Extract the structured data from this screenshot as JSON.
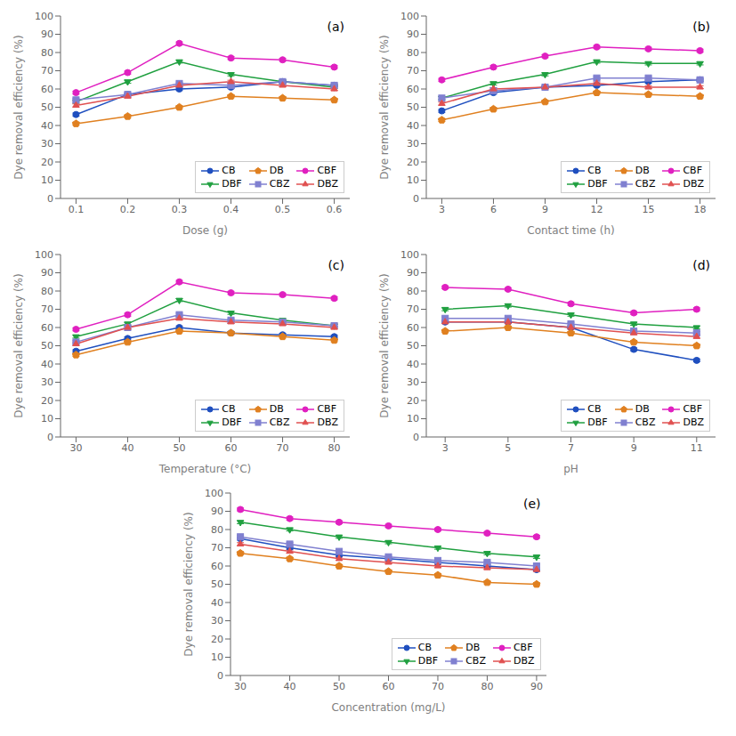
{
  "chart_data": [
    {
      "type": "line",
      "annotations": [
        "(a)"
      ],
      "xlabel": "Dose (g)",
      "ylabel": "Dye removal efficiency (%)",
      "x": [
        0.1,
        0.2,
        0.3,
        0.4,
        0.5,
        0.6
      ],
      "xlim": [
        0.07,
        0.63
      ],
      "xticks": [
        0.1,
        0.2,
        0.3,
        0.4,
        0.5,
        0.6
      ],
      "ylim": [
        0,
        100
      ],
      "yticks": [
        0,
        10,
        20,
        30,
        40,
        50,
        60,
        70,
        80,
        90,
        100
      ],
      "grid": false,
      "legend": "lower right",
      "series": [
        {
          "name": "CB",
          "color": "#1f4fbf",
          "marker": "circle",
          "values": [
            46,
            57,
            60,
            61,
            64,
            62
          ],
          "errors": [
            0.8,
            0.8,
            0.8,
            0.8,
            0.8,
            0.8
          ]
        },
        {
          "name": "DB",
          "color": "#e08020",
          "marker": "pentagon",
          "values": [
            41,
            45,
            50,
            56,
            55,
            54
          ],
          "errors": [
            0.8,
            0.8,
            0.8,
            0.8,
            0.8,
            0.8
          ]
        },
        {
          "name": "CBF",
          "color": "#e020c0",
          "marker": "circle",
          "values": [
            58,
            69,
            85,
            77,
            76,
            72
          ],
          "errors": [
            0.8,
            0.8,
            0.8,
            0.8,
            0.8,
            0.8
          ]
        },
        {
          "name": "DBF",
          "color": "#20a040",
          "marker": "triangle-down",
          "values": [
            53,
            64,
            75,
            68,
            64,
            61
          ],
          "errors": [
            0.8,
            0.8,
            0.8,
            0.8,
            0.8,
            0.8
          ]
        },
        {
          "name": "CBZ",
          "color": "#8080d0",
          "marker": "square",
          "values": [
            54,
            57,
            63,
            62,
            64,
            62
          ],
          "errors": [
            0.8,
            0.8,
            0.8,
            0.8,
            0.8,
            0.8
          ]
        },
        {
          "name": "DBZ",
          "color": "#e05050",
          "marker": "triangle-up",
          "values": [
            51,
            56,
            62,
            64,
            62,
            60
          ],
          "errors": [
            0.8,
            0.8,
            0.8,
            0.8,
            0.8,
            0.8
          ]
        }
      ]
    },
    {
      "type": "line",
      "annotations": [
        "(b)"
      ],
      "xlabel": "Contact time (h)",
      "ylabel": "Dye removal efficiency (%)",
      "x": [
        3,
        6,
        9,
        12,
        15,
        18
      ],
      "xlim": [
        2.1,
        18.9
      ],
      "xticks": [
        3,
        6,
        9,
        12,
        15,
        18
      ],
      "ylim": [
        0,
        100
      ],
      "yticks": [
        0,
        10,
        20,
        30,
        40,
        50,
        60,
        70,
        80,
        90,
        100
      ],
      "grid": false,
      "legend": "lower right",
      "series": [
        {
          "name": "CB",
          "color": "#1f4fbf",
          "marker": "circle",
          "values": [
            48,
            58,
            61,
            62,
            64,
            65
          ],
          "errors": [
            0.8,
            0.8,
            0.8,
            0.8,
            0.8,
            0.8
          ]
        },
        {
          "name": "DB",
          "color": "#e08020",
          "marker": "pentagon",
          "values": [
            43,
            49,
            53,
            58,
            57,
            56
          ],
          "errors": [
            0.8,
            0.8,
            0.8,
            0.8,
            0.8,
            0.8
          ]
        },
        {
          "name": "CBF",
          "color": "#e020c0",
          "marker": "circle",
          "values": [
            65,
            72,
            78,
            83,
            82,
            81
          ],
          "errors": [
            0.8,
            0.8,
            0.8,
            0.8,
            0.8,
            0.8
          ]
        },
        {
          "name": "DBF",
          "color": "#20a040",
          "marker": "triangle-down",
          "values": [
            55,
            63,
            68,
            75,
            74,
            74
          ],
          "errors": [
            0.8,
            0.8,
            0.8,
            0.8,
            0.8,
            0.8
          ]
        },
        {
          "name": "CBZ",
          "color": "#8080d0",
          "marker": "square",
          "values": [
            55,
            59,
            61,
            66,
            66,
            65
          ],
          "errors": [
            0.8,
            0.8,
            0.8,
            0.8,
            0.8,
            0.8
          ]
        },
        {
          "name": "DBZ",
          "color": "#e05050",
          "marker": "triangle-up",
          "values": [
            52,
            60,
            61,
            63,
            61,
            61
          ],
          "errors": [
            0.8,
            0.8,
            0.8,
            0.8,
            0.8,
            0.8
          ]
        }
      ]
    },
    {
      "type": "line",
      "annotations": [
        "(c)"
      ],
      "xlabel": "Temperature (°C)",
      "ylabel": "Dye removal efficiency (%)",
      "x": [
        30,
        40,
        50,
        60,
        70,
        80
      ],
      "xlim": [
        27,
        83
      ],
      "xticks": [
        30,
        40,
        50,
        60,
        70,
        80
      ],
      "ylim": [
        0,
        100
      ],
      "yticks": [
        0,
        10,
        20,
        30,
        40,
        50,
        60,
        70,
        80,
        90,
        100
      ],
      "grid": false,
      "legend": "lower right",
      "series": [
        {
          "name": "CB",
          "color": "#1f4fbf",
          "marker": "circle",
          "values": [
            47,
            54,
            60,
            57,
            56,
            55
          ],
          "errors": [
            0.8,
            0.8,
            0.8,
            0.8,
            0.8,
            0.8
          ]
        },
        {
          "name": "DB",
          "color": "#e08020",
          "marker": "pentagon",
          "values": [
            45,
            52,
            58,
            57,
            55,
            53
          ],
          "errors": [
            0.8,
            0.8,
            0.8,
            0.8,
            0.8,
            0.8
          ]
        },
        {
          "name": "CBF",
          "color": "#e020c0",
          "marker": "circle",
          "values": [
            59,
            67,
            85,
            79,
            78,
            76
          ],
          "errors": [
            0.8,
            0.8,
            0.8,
            0.8,
            0.8,
            0.8
          ]
        },
        {
          "name": "DBF",
          "color": "#20a040",
          "marker": "triangle-down",
          "values": [
            55,
            62,
            75,
            68,
            64,
            61
          ],
          "errors": [
            0.8,
            0.8,
            0.8,
            0.8,
            0.8,
            0.8
          ]
        },
        {
          "name": "CBZ",
          "color": "#8080d0",
          "marker": "square",
          "values": [
            52,
            60,
            67,
            64,
            63,
            61
          ],
          "errors": [
            0.8,
            0.8,
            0.8,
            0.8,
            0.8,
            0.8
          ]
        },
        {
          "name": "DBZ",
          "color": "#e05050",
          "marker": "triangle-up",
          "values": [
            51,
            60,
            65,
            63,
            62,
            60
          ],
          "errors": [
            0.8,
            0.8,
            0.8,
            0.8,
            0.8,
            0.8
          ]
        }
      ]
    },
    {
      "type": "line",
      "annotations": [
        "(d)"
      ],
      "xlabel": "pH",
      "ylabel": "Dye removal efficiency (%)",
      "x": [
        3,
        5,
        7,
        9,
        11
      ],
      "xlim": [
        2.4,
        11.6
      ],
      "xticks": [
        3,
        5,
        7,
        9,
        11
      ],
      "ylim": [
        0,
        100
      ],
      "yticks": [
        0,
        10,
        20,
        30,
        40,
        50,
        60,
        70,
        80,
        90,
        100
      ],
      "grid": false,
      "legend": "lower right",
      "series": [
        {
          "name": "CB",
          "color": "#1f4fbf",
          "marker": "circle",
          "values": [
            63,
            63,
            60,
            48,
            42
          ],
          "errors": [
            0.8,
            0.8,
            0.8,
            0.8,
            0.8
          ]
        },
        {
          "name": "DB",
          "color": "#e08020",
          "marker": "pentagon",
          "values": [
            58,
            60,
            57,
            52,
            50
          ],
          "errors": [
            0.8,
            0.8,
            0.8,
            0.8,
            0.8
          ]
        },
        {
          "name": "CBF",
          "color": "#e020c0",
          "marker": "circle",
          "values": [
            82,
            81,
            73,
            68,
            70
          ],
          "errors": [
            0.8,
            0.8,
            0.8,
            0.8,
            0.8
          ]
        },
        {
          "name": "DBF",
          "color": "#20a040",
          "marker": "triangle-down",
          "values": [
            70,
            72,
            67,
            62,
            60
          ],
          "errors": [
            0.8,
            0.8,
            0.8,
            0.8,
            0.8
          ]
        },
        {
          "name": "CBZ",
          "color": "#8080d0",
          "marker": "square",
          "values": [
            65,
            65,
            62,
            58,
            57
          ],
          "errors": [
            0.8,
            0.8,
            0.8,
            0.8,
            0.8
          ]
        },
        {
          "name": "DBZ",
          "color": "#e05050",
          "marker": "triangle-up",
          "values": [
            63,
            63,
            60,
            57,
            55
          ],
          "errors": [
            0.8,
            0.8,
            0.8,
            0.8,
            0.8
          ]
        }
      ]
    },
    {
      "type": "line",
      "annotations": [
        "(e)"
      ],
      "xlabel": "Concentration (mg/L)",
      "ylabel": "Dye removal efficiency (%)",
      "x": [
        30,
        40,
        50,
        60,
        70,
        80,
        90
      ],
      "xlim": [
        28,
        92
      ],
      "xticks": [
        30,
        40,
        50,
        60,
        70,
        80,
        90
      ],
      "ylim": [
        0,
        100
      ],
      "yticks": [
        0,
        10,
        20,
        30,
        40,
        50,
        60,
        70,
        80,
        90,
        100
      ],
      "grid": false,
      "legend": "lower right",
      "series": [
        {
          "name": "CB",
          "color": "#1f4fbf",
          "marker": "circle",
          "values": [
            75,
            70,
            66,
            64,
            62,
            60,
            58
          ],
          "errors": [
            0.8,
            0.8,
            0.8,
            0.8,
            0.8,
            0.8,
            0.8
          ]
        },
        {
          "name": "DB",
          "color": "#e08020",
          "marker": "pentagon",
          "values": [
            67,
            64,
            60,
            57,
            55,
            51,
            50
          ],
          "errors": [
            0.8,
            0.8,
            0.8,
            0.8,
            0.8,
            0.8,
            0.8
          ]
        },
        {
          "name": "CBF",
          "color": "#e020c0",
          "marker": "circle",
          "values": [
            91,
            86,
            84,
            82,
            80,
            78,
            76
          ],
          "errors": [
            0.8,
            0.8,
            0.8,
            0.8,
            0.8,
            0.8,
            0.8
          ]
        },
        {
          "name": "DBF",
          "color": "#20a040",
          "marker": "triangle-down",
          "values": [
            84,
            80,
            76,
            73,
            70,
            67,
            65
          ],
          "errors": [
            0.8,
            0.8,
            0.8,
            0.8,
            0.8,
            0.8,
            0.8
          ]
        },
        {
          "name": "CBZ",
          "color": "#8080d0",
          "marker": "square",
          "values": [
            76,
            72,
            68,
            65,
            63,
            62,
            60
          ],
          "errors": [
            0.8,
            0.8,
            0.8,
            0.8,
            0.8,
            0.8,
            0.8
          ]
        },
        {
          "name": "DBZ",
          "color": "#e05050",
          "marker": "triangle-up",
          "values": [
            72,
            68,
            64,
            62,
            60,
            59,
            58
          ],
          "errors": [
            0.8,
            0.8,
            0.8,
            0.8,
            0.8,
            0.8,
            0.8
          ]
        }
      ]
    }
  ]
}
